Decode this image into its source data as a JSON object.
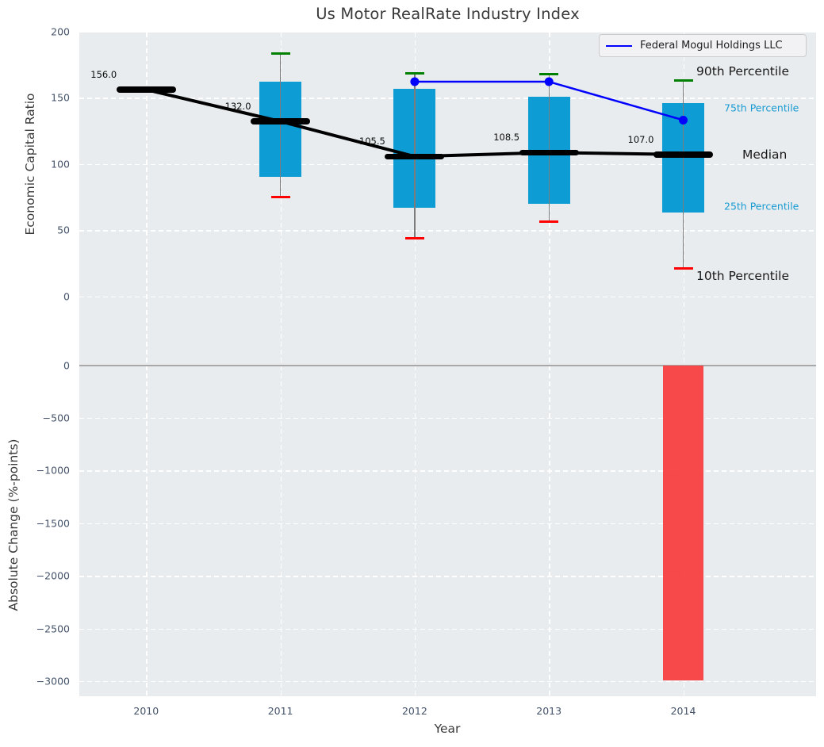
{
  "title": "Us Motor RealRate Industry Index",
  "chart_data": {
    "type": "combo",
    "title": "Us Motor RealRate Industry Index",
    "xlabel": "Year",
    "years": [
      "2010",
      "2011",
      "2012",
      "2013",
      "2014"
    ],
    "legend_position": "upper right",
    "top_panel": {
      "type": "box",
      "ylabel": "Economic Capital Ratio",
      "yticks": [
        200,
        150,
        100,
        50,
        0
      ],
      "grid": true,
      "median": [
        156.0,
        132.0,
        105.5,
        108.5,
        107.0
      ],
      "median_annotations": [
        "156.0",
        "132.0",
        "105.5",
        "108.5",
        "107.0"
      ],
      "p90": [
        null,
        183,
        168.5,
        168,
        163
      ],
      "p75": [
        null,
        162,
        156.5,
        150.5,
        146
      ],
      "p25": [
        null,
        90,
        67,
        70,
        63
      ],
      "p10": [
        null,
        75,
        43.5,
        56.5,
        21
      ],
      "percentile_labels": {
        "p90": "90th Percentile",
        "p75": "75th Percentile",
        "median": "Median",
        "p25": "25th Percentile",
        "p10": "10th Percentile"
      },
      "company": {
        "name": "Federal Mogul Holdings LLC",
        "values": [
          null,
          null,
          162,
          162,
          133
        ]
      }
    },
    "bottom_panel": {
      "type": "bar",
      "ylabel": "Absolute Change (%-points)",
      "yticks": [
        0,
        -500,
        -1000,
        -1500,
        -2000,
        -2500,
        -3000
      ],
      "values": [
        null,
        null,
        null,
        null,
        -2990
      ]
    },
    "colors": {
      "box": "#0d9dd4",
      "bar": "#f94040",
      "company_line": "#0000ff",
      "trend_line": "#000000",
      "p90_cap": "#008000",
      "p10_cap": "#ff0000",
      "percentile_accent": "#189ad3",
      "plot_bg": "#e8ecee",
      "tick": "#44536a"
    }
  }
}
